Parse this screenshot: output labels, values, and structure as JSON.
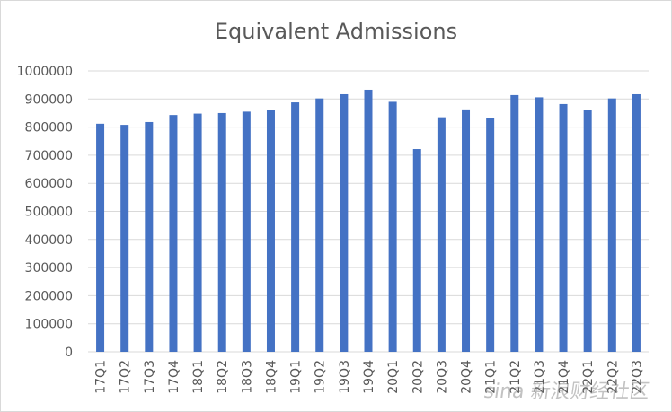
{
  "chart_data": {
    "type": "bar",
    "title": "Equivalent Admissions",
    "xlabel": "",
    "ylabel": "",
    "categories": [
      "17Q1",
      "17Q2",
      "17Q3",
      "17Q4",
      "18Q1",
      "18Q2",
      "18Q3",
      "18Q4",
      "19Q1",
      "19Q2",
      "19Q3",
      "19Q4",
      "20Q1",
      "20Q2",
      "20Q3",
      "20Q4",
      "21Q1",
      "21Q2",
      "21Q3",
      "21Q4",
      "22Q1",
      "22Q2",
      "22Q3"
    ],
    "values": [
      812000,
      808000,
      818000,
      843000,
      848000,
      850000,
      855000,
      862000,
      888000,
      902000,
      917000,
      933000,
      890000,
      722000,
      835000,
      863000,
      832000,
      914000,
      906000,
      882000,
      860000,
      902000,
      917000
    ],
    "ylim": [
      0,
      1000000
    ],
    "yticks": [
      "0",
      "100000",
      "200000",
      "300000",
      "400000",
      "500000",
      "600000",
      "700000",
      "800000",
      "900000",
      "1000000"
    ],
    "grid": true,
    "bar_color": "#4472C4",
    "grid_color": "#d9d9d9"
  },
  "watermark": "sina 新浪财经社区"
}
